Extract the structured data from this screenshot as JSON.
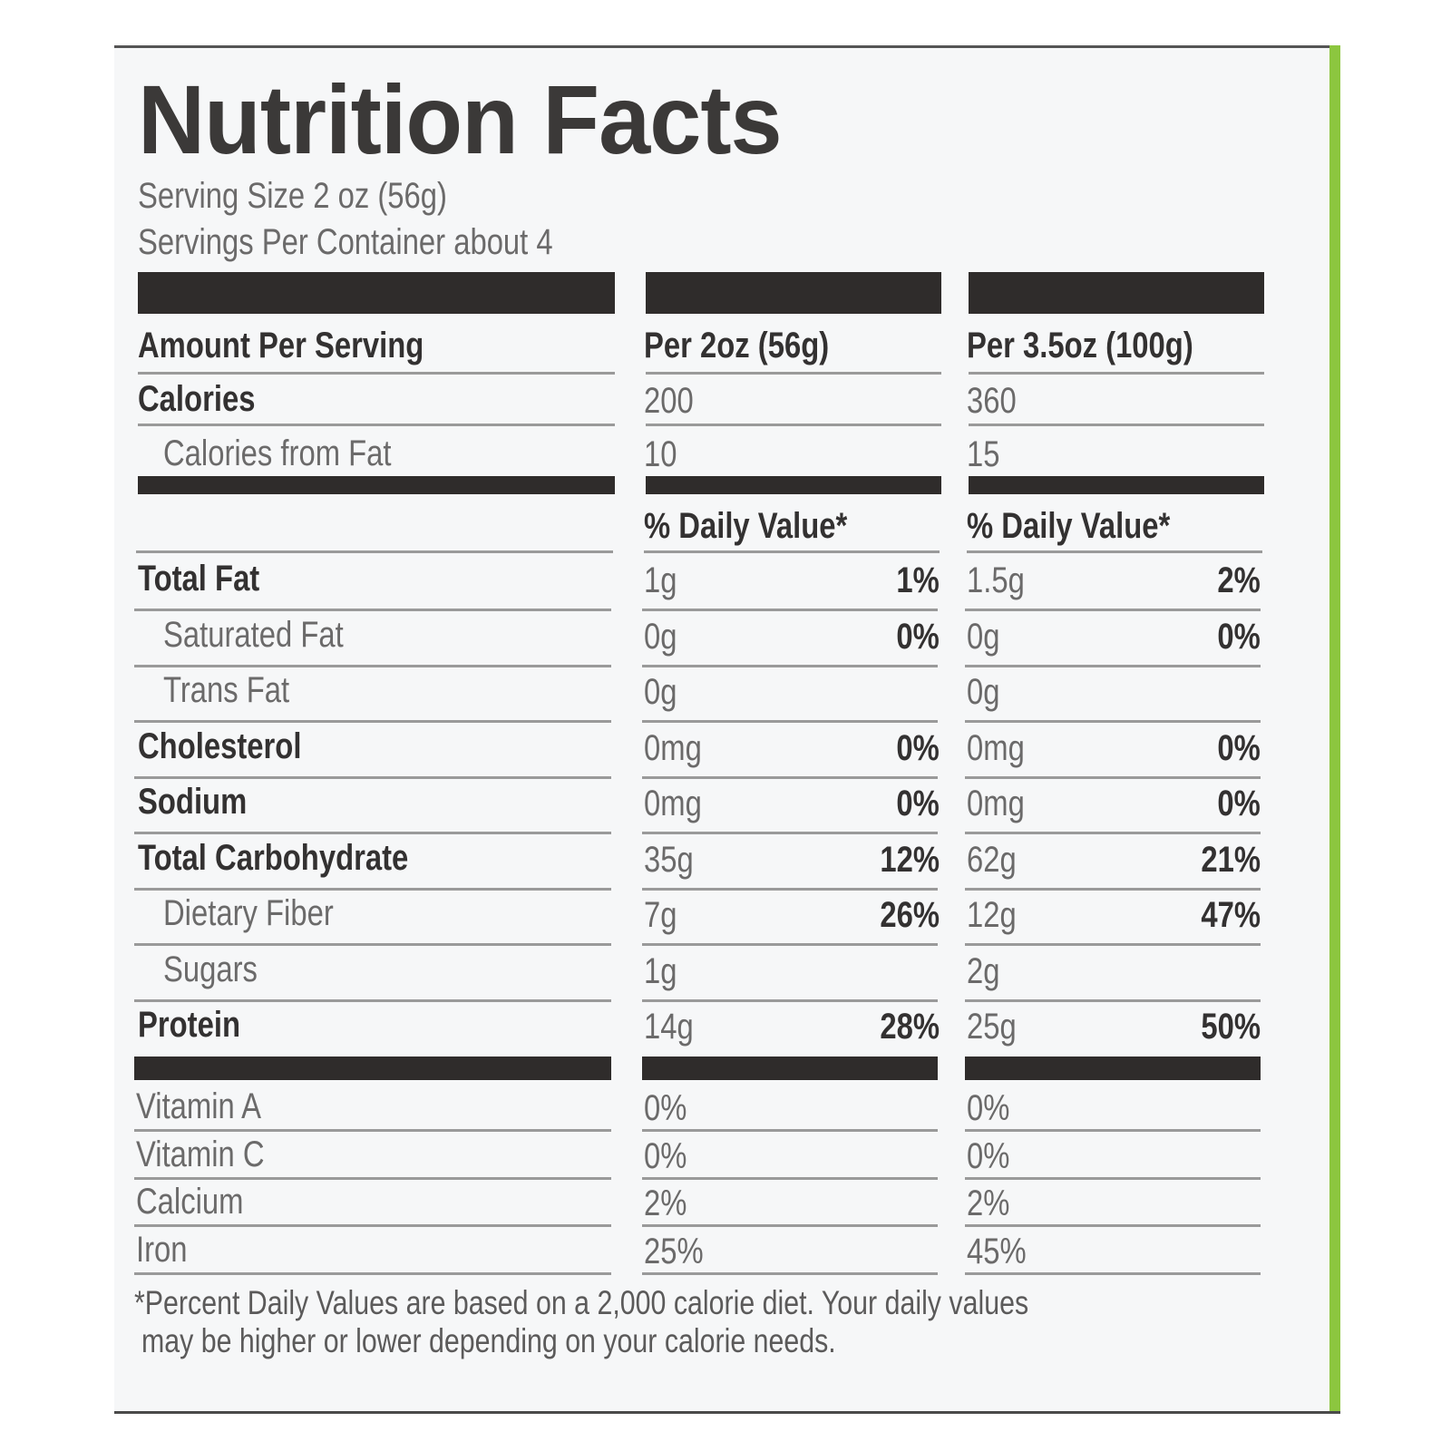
{
  "title": "Nutrition Facts",
  "serving_size": "Serving Size 2 oz (56g)",
  "servings_per_container": "Servings Per Container about 4",
  "header": {
    "label": "Amount Per Serving",
    "col1": "Per 2oz (56g)",
    "col2": "Per 3.5oz (100g)"
  },
  "calories": {
    "label": "Calories",
    "col1": "200",
    "col2": "360"
  },
  "calories_fat": {
    "label": "Calories from Fat",
    "col1": "10",
    "col2": "15"
  },
  "dv_header": {
    "col1": "% Daily Value*",
    "col2": "% Daily Value*"
  },
  "nutrients": [
    {
      "label": "Total Fat",
      "amt1": "1g",
      "pct1": "1%",
      "amt2": "1.5g",
      "pct2": "2%"
    },
    {
      "label": "Saturated Fat",
      "amt1": "0g",
      "pct1": "0%",
      "amt2": "0g",
      "pct2": "0%"
    },
    {
      "label": "Trans Fat",
      "amt1": "0g",
      "pct1": "",
      "amt2": "0g",
      "pct2": ""
    },
    {
      "label": "Cholesterol",
      "amt1": "0mg",
      "pct1": "0%",
      "amt2": "0mg",
      "pct2": "0%"
    },
    {
      "label": "Sodium",
      "amt1": "0mg",
      "pct1": "0%",
      "amt2": "0mg",
      "pct2": "0%"
    },
    {
      "label": "Total Carbohydrate",
      "amt1": "35g",
      "pct1": "12%",
      "amt2": "62g",
      "pct2": "21%"
    },
    {
      "label": "Dietary Fiber",
      "amt1": "7g",
      "pct1": "26%",
      "amt2": "12g",
      "pct2": "47%"
    },
    {
      "label": "Sugars",
      "amt1": "1g",
      "pct1": "",
      "amt2": "2g",
      "pct2": ""
    },
    {
      "label": "Protein",
      "amt1": "14g",
      "pct1": "28%",
      "amt2": "25g",
      "pct2": "50%"
    }
  ],
  "vitamins": [
    {
      "label": "Vitamin A",
      "col1": "0%",
      "col2": "0%"
    },
    {
      "label": "Vitamin C",
      "col1": "0%",
      "col2": "0%"
    },
    {
      "label": "Calcium",
      "col1": "2%",
      "col2": "2%"
    },
    {
      "label": "Iron",
      "col1": "25%",
      "col2": "45%"
    }
  ],
  "footnote_line1": "*Percent Daily Values are based on a 2,000 calorie diet. Your daily values",
  "footnote_line2": "may be higher or lower depending on your calorie needs.",
  "colors": {
    "accent_edge": "#8cc63f",
    "bars": "#2f2c2b",
    "background": "#f6f7f8"
  }
}
